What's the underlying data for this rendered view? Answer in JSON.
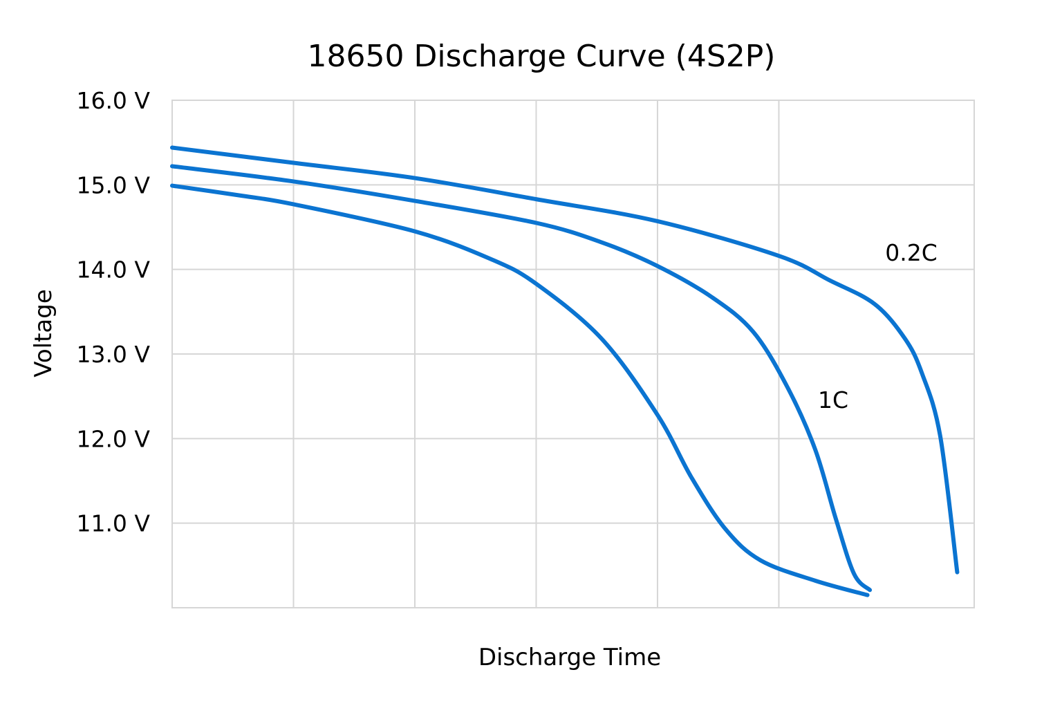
{
  "chart_data": {
    "type": "line",
    "title": "18650 Discharge Curve (4S2P)",
    "xlabel": "Discharge Time",
    "ylabel": "Voltage",
    "xlim": [
      0,
      6.61
    ],
    "ylim": [
      10.0,
      16.0
    ],
    "yticks": [
      {
        "value": 16,
        "label": "16.0 V"
      },
      {
        "value": 15,
        "label": "15.0 V"
      },
      {
        "value": 14,
        "label": "14.0 V"
      },
      {
        "value": 13,
        "label": "13.0 V"
      },
      {
        "value": 12,
        "label": "12.0 V"
      },
      {
        "value": 11,
        "label": "11.0 V"
      }
    ],
    "xgrid": [
      0,
      1,
      2,
      3,
      4,
      5
    ],
    "grid": true,
    "line_color": "#0b74d1",
    "grid_color": "#d6d6d6",
    "series": [
      {
        "name": "0.2C",
        "x": [
          0,
          1,
          2,
          3,
          4,
          5,
          5.42,
          5.79,
          6.04,
          6.18,
          6.33,
          6.47
        ],
        "y": [
          15.44,
          15.26,
          15.08,
          14.83,
          14.57,
          14.16,
          13.87,
          13.59,
          13.18,
          12.77,
          12.03,
          10.42
        ]
      },
      {
        "name": "1C",
        "x": [
          0,
          1,
          2,
          3,
          3.54,
          4,
          4.45,
          4.79,
          5.07,
          5.3,
          5.47,
          5.62,
          5.75
        ],
        "y": [
          15.22,
          15.04,
          14.81,
          14.55,
          14.32,
          14.04,
          13.67,
          13.26,
          12.61,
          11.87,
          11.05,
          10.4,
          10.21
        ]
      },
      {
        "name": "",
        "x": [
          0,
          0.58,
          1,
          2,
          2.63,
          3,
          3.54,
          4,
          4.28,
          4.56,
          4.85,
          5.3,
          5.73
        ],
        "y": [
          14.99,
          14.87,
          14.77,
          14.45,
          14.12,
          13.83,
          13.18,
          12.28,
          11.54,
          10.93,
          10.56,
          10.32,
          10.15
        ]
      }
    ]
  }
}
